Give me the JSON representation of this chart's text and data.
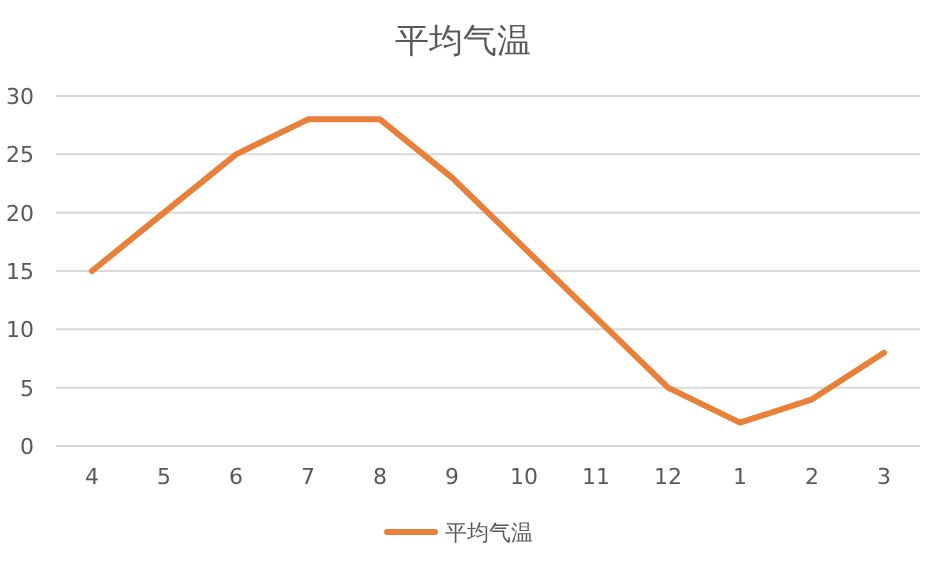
{
  "chart_data": {
    "type": "line",
    "title": "平均气温",
    "categories": [
      "4",
      "5",
      "6",
      "7",
      "8",
      "9",
      "10",
      "11",
      "12",
      "1",
      "2",
      "3"
    ],
    "series": [
      {
        "name": "平均气温",
        "color": "#e8803a",
        "values": [
          15,
          20,
          25,
          28,
          28,
          23,
          17,
          11,
          5,
          2,
          4,
          8
        ]
      }
    ],
    "ylim": [
      0,
      30
    ],
    "yticks": [
      0,
      5,
      10,
      15,
      20,
      25,
      30
    ],
    "grid": "y",
    "legend": "bottom",
    "marker": "none",
    "line_style": "solid"
  }
}
